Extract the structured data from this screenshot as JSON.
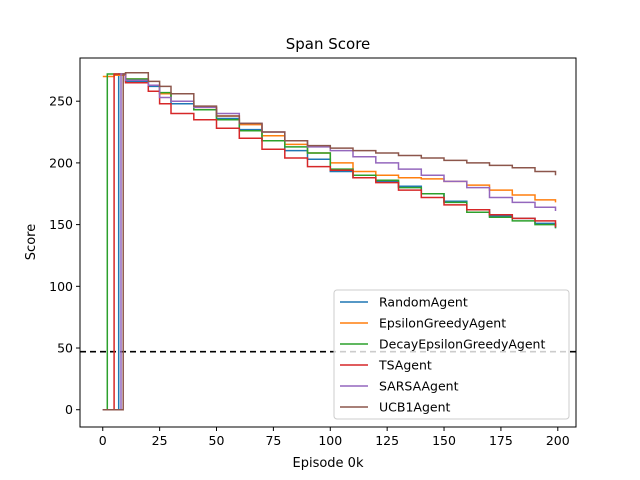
{
  "chart_data": {
    "type": "line",
    "title": "Span Score",
    "xlabel": "Episode 0k",
    "ylabel": "Score",
    "xlim": [
      -10,
      208
    ],
    "ylim": [
      -14,
      285
    ],
    "xticks": [
      0,
      25,
      50,
      75,
      100,
      125,
      150,
      175,
      200
    ],
    "yticks": [
      0,
      50,
      100,
      150,
      200,
      250
    ],
    "grid": false,
    "legend_position": "lower right",
    "reference_line": {
      "y": 47,
      "style": "dashed",
      "color": "#000000"
    },
    "series": [
      {
        "name": "RandomAgent",
        "color": "#1f77b4",
        "points": [
          [
            0,
            0
          ],
          [
            6,
            0
          ],
          [
            7,
            272
          ],
          [
            10,
            266
          ],
          [
            20,
            262
          ],
          [
            25,
            256
          ],
          [
            30,
            248
          ],
          [
            40,
            243
          ],
          [
            50,
            236
          ],
          [
            60,
            227
          ],
          [
            70,
            218
          ],
          [
            80,
            210
          ],
          [
            90,
            203
          ],
          [
            100,
            193
          ],
          [
            110,
            188
          ],
          [
            120,
            185
          ],
          [
            130,
            181
          ],
          [
            140,
            175
          ],
          [
            150,
            169
          ],
          [
            160,
            162
          ],
          [
            170,
            157
          ],
          [
            180,
            155
          ],
          [
            190,
            151
          ],
          [
            199,
            147
          ]
        ]
      },
      {
        "name": "EpsilonGreedyAgent",
        "color": "#ff7f0e",
        "points": [
          [
            0,
            270
          ],
          [
            5,
            271
          ],
          [
            10,
            268
          ],
          [
            20,
            263
          ],
          [
            25,
            256
          ],
          [
            30,
            250
          ],
          [
            40,
            245
          ],
          [
            50,
            238
          ],
          [
            60,
            231
          ],
          [
            70,
            222
          ],
          [
            80,
            215
          ],
          [
            90,
            208
          ],
          [
            100,
            200
          ],
          [
            110,
            193
          ],
          [
            120,
            190
          ],
          [
            130,
            188
          ],
          [
            140,
            187
          ],
          [
            150,
            185
          ],
          [
            160,
            182
          ],
          [
            170,
            178
          ],
          [
            180,
            174
          ],
          [
            190,
            170
          ],
          [
            199,
            168
          ]
        ]
      },
      {
        "name": "DecayEpsilonGreedyAgent",
        "color": "#2ca02c",
        "points": [
          [
            0,
            0
          ],
          [
            1,
            0
          ],
          [
            2,
            272
          ],
          [
            10,
            268
          ],
          [
            20,
            263
          ],
          [
            25,
            257
          ],
          [
            30,
            250
          ],
          [
            40,
            243
          ],
          [
            50,
            235
          ],
          [
            60,
            226
          ],
          [
            70,
            218
          ],
          [
            80,
            213
          ],
          [
            90,
            208
          ],
          [
            100,
            195
          ],
          [
            110,
            190
          ],
          [
            120,
            186
          ],
          [
            130,
            180
          ],
          [
            140,
            175
          ],
          [
            150,
            168
          ],
          [
            160,
            160
          ],
          [
            170,
            156
          ],
          [
            180,
            153
          ],
          [
            190,
            150
          ],
          [
            199,
            147
          ]
        ]
      },
      {
        "name": "TSAgent",
        "color": "#d62728",
        "points": [
          [
            0,
            0
          ],
          [
            4,
            0
          ],
          [
            5,
            272
          ],
          [
            10,
            265
          ],
          [
            20,
            258
          ],
          [
            25,
            248
          ],
          [
            30,
            240
          ],
          [
            40,
            235
          ],
          [
            50,
            228
          ],
          [
            60,
            220
          ],
          [
            70,
            211
          ],
          [
            80,
            204
          ],
          [
            90,
            197
          ],
          [
            100,
            194
          ],
          [
            110,
            188
          ],
          [
            120,
            184
          ],
          [
            130,
            178
          ],
          [
            140,
            172
          ],
          [
            150,
            166
          ],
          [
            160,
            162
          ],
          [
            170,
            158
          ],
          [
            180,
            155
          ],
          [
            190,
            153
          ],
          [
            199,
            148
          ]
        ]
      },
      {
        "name": "SARSAAgent",
        "color": "#9467bd",
        "points": [
          [
            0,
            0
          ],
          [
            7,
            0
          ],
          [
            8,
            272
          ],
          [
            10,
            267
          ],
          [
            20,
            263
          ],
          [
            25,
            253
          ],
          [
            30,
            250
          ],
          [
            40,
            245
          ],
          [
            50,
            240
          ],
          [
            60,
            232
          ],
          [
            70,
            225
          ],
          [
            80,
            218
          ],
          [
            90,
            213
          ],
          [
            100,
            210
          ],
          [
            110,
            205
          ],
          [
            120,
            200
          ],
          [
            130,
            195
          ],
          [
            140,
            190
          ],
          [
            150,
            185
          ],
          [
            160,
            180
          ],
          [
            170,
            172
          ],
          [
            180,
            168
          ],
          [
            190,
            164
          ],
          [
            199,
            161
          ]
        ]
      },
      {
        "name": "UCB1Agent",
        "color": "#8c564b",
        "points": [
          [
            0,
            0
          ],
          [
            8,
            0
          ],
          [
            9,
            272
          ],
          [
            10,
            273
          ],
          [
            20,
            266
          ],
          [
            25,
            262
          ],
          [
            30,
            256
          ],
          [
            40,
            246
          ],
          [
            50,
            238
          ],
          [
            60,
            232
          ],
          [
            70,
            225
          ],
          [
            80,
            218
          ],
          [
            90,
            214
          ],
          [
            100,
            212
          ],
          [
            110,
            210
          ],
          [
            120,
            208
          ],
          [
            130,
            206
          ],
          [
            140,
            204
          ],
          [
            150,
            202
          ],
          [
            160,
            200
          ],
          [
            170,
            198
          ],
          [
            180,
            196
          ],
          [
            190,
            193
          ],
          [
            199,
            190
          ]
        ]
      }
    ]
  }
}
